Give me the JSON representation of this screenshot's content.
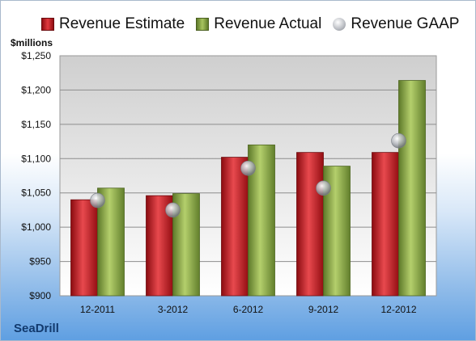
{
  "legend": [
    {
      "label": "Revenue Estimate",
      "icon": "red-bar-icon"
    },
    {
      "label": "Revenue Actual",
      "icon": "green-bar-icon"
    },
    {
      "label": "Revenue GAAP",
      "icon": "gray-sphere-icon"
    }
  ],
  "unit_label": "$millions",
  "brand": "SeaDrill",
  "colors": {
    "estimate": "#c8141b",
    "actual": "#8aab45",
    "gaap": "#b4b7bd"
  },
  "chart_data": {
    "type": "bar",
    "categories": [
      "12-2011",
      "3-2012",
      "6-2012",
      "9-2012",
      "12-2012"
    ],
    "series": [
      {
        "name": "Revenue Estimate",
        "type": "bar",
        "values": [
          1040,
          1046,
          1102,
          1109,
          1109
        ]
      },
      {
        "name": "Revenue Actual",
        "type": "bar",
        "values": [
          1057,
          1049,
          1120,
          1089,
          1214
        ]
      },
      {
        "name": "Revenue GAAP",
        "type": "scatter",
        "values": [
          1039,
          1025,
          1086,
          1057,
          1126
        ]
      }
    ],
    "y_ticks": [
      "$900",
      "$950",
      "$1,000",
      "$1,050",
      "$1,100",
      "$1,150",
      "$1,200",
      "$1,250"
    ],
    "ylim": [
      900,
      1250
    ],
    "grid": true,
    "legend_position": "top"
  }
}
